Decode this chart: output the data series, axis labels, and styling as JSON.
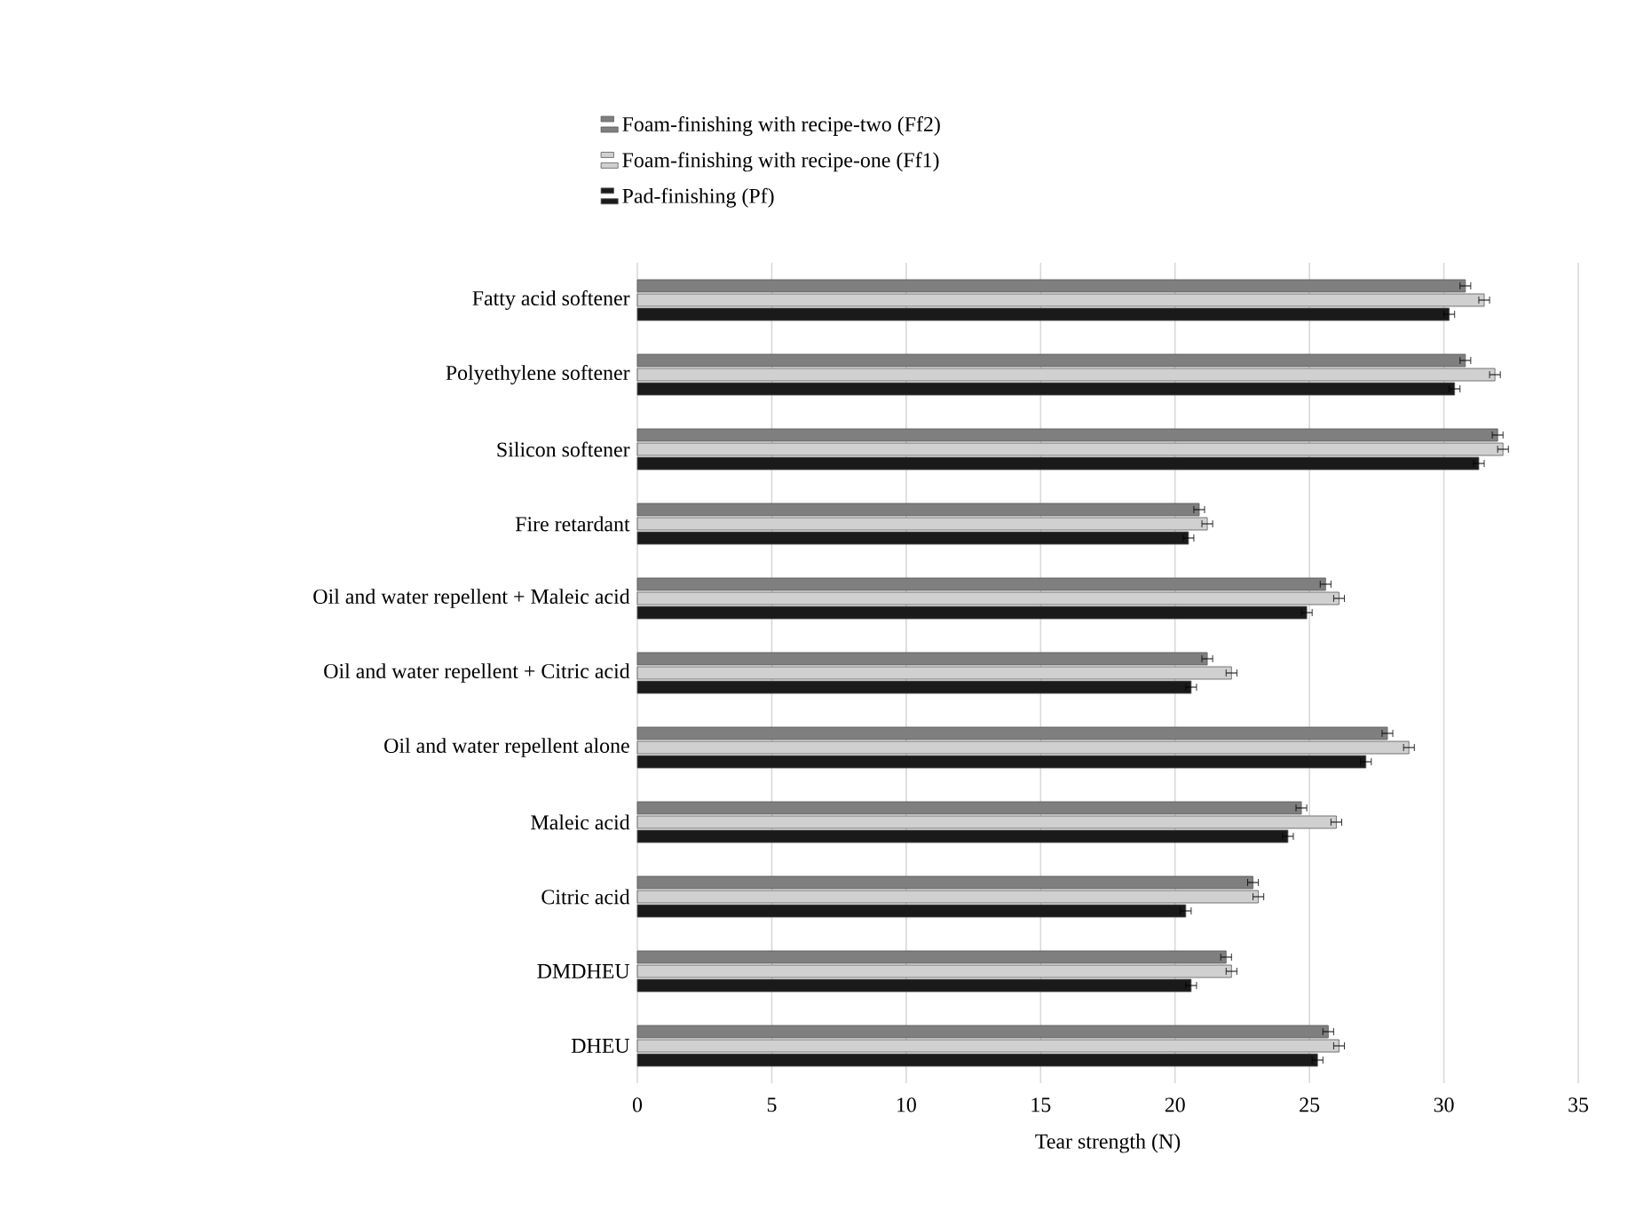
{
  "chart_data": {
    "type": "bar",
    "orientation": "horizontal",
    "xlabel": "Tear strength (N)",
    "categories": [
      "Fatty acid softener",
      "Polyethylene softener",
      "Silicon softener",
      "Fire retardant",
      "Oil and water repellent + Maleic acid",
      "Oil and water repellent + Citric acid",
      "Oil and water repellent alone",
      "Maleic acid",
      "Citric acid",
      "DMDHEU",
      "DHEU"
    ],
    "series": [
      {
        "name": "Foam-finishing with recipe-two (Ff2)",
        "color": "#7f7f7f",
        "values": [
          30.8,
          30.8,
          32.0,
          20.9,
          25.6,
          21.2,
          27.9,
          24.7,
          22.9,
          21.9,
          25.7
        ],
        "errors": [
          0.2,
          0.2,
          0.2,
          0.2,
          0.2,
          0.2,
          0.2,
          0.2,
          0.2,
          0.2,
          0.2
        ]
      },
      {
        "name": "Foam-finishing with recipe-one (Ff1)",
        "color": "#d0d0d0",
        "values": [
          31.5,
          31.9,
          32.2,
          21.2,
          26.1,
          22.1,
          28.7,
          26.0,
          23.1,
          22.1,
          26.1
        ],
        "errors": [
          0.2,
          0.2,
          0.2,
          0.2,
          0.2,
          0.2,
          0.2,
          0.2,
          0.2,
          0.2,
          0.2
        ]
      },
      {
        "name": "Pad-finishing (Pf)",
        "color": "#1a1a1a",
        "values": [
          30.2,
          30.4,
          31.3,
          20.5,
          24.9,
          20.6,
          27.1,
          24.2,
          20.4,
          20.6,
          25.3
        ],
        "errors": [
          0.2,
          0.2,
          0.2,
          0.2,
          0.2,
          0.2,
          0.2,
          0.2,
          0.2,
          0.2,
          0.2
        ]
      }
    ],
    "xlim": [
      0,
      35
    ],
    "xticks": [
      0,
      5,
      10,
      15,
      20,
      25,
      30,
      35
    ],
    "grid": "x",
    "legend": "top left"
  }
}
